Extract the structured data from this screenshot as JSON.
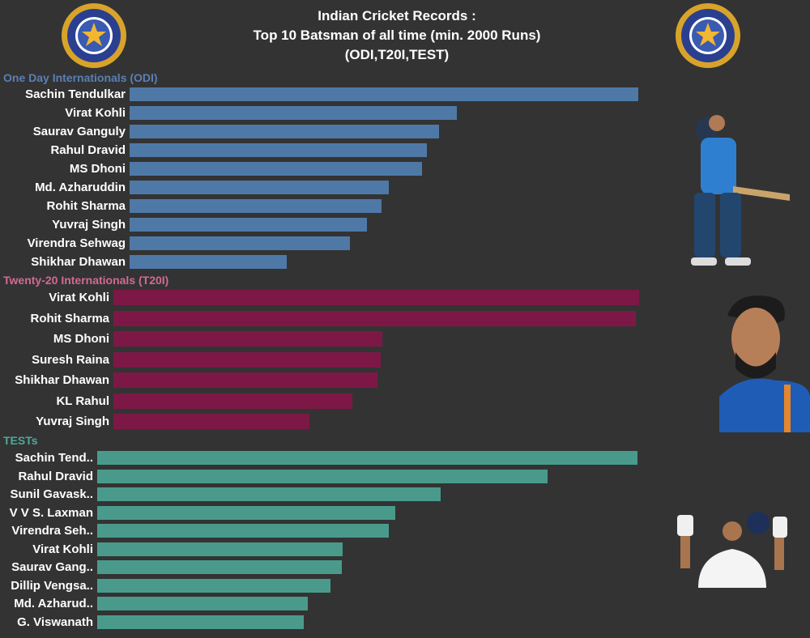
{
  "title": [
    "Indian Cricket Records :",
    "Top 10 Batsman of all time (min. 2000 Runs)",
    "(ODI,T20I,TEST)"
  ],
  "colors": {
    "odi": "#4e79a7",
    "t20": "#7d1846",
    "test": "#4a9a8c",
    "odi_title": "#5b7fb5",
    "t20_title": "#d06b93",
    "test_title": "#4fa89a"
  },
  "chart_data": [
    {
      "type": "bar",
      "orientation": "horizontal",
      "title": "One Day Internationals (ODI)",
      "categories": [
        "Sachin Tendulkar",
        "Virat Kohli",
        "Saurav Ganguly",
        "Rahul Dravid",
        "MS Dhoni",
        "Md. Azharuddin",
        "Rohit Sharma",
        "Yuvraj Singh",
        "Virendra Sehwag",
        "Shikhar Dhawan"
      ],
      "values": [
        18426,
        11867,
        11221,
        10768,
        10599,
        9378,
        9115,
        8609,
        7995,
        5688
      ]
    },
    {
      "type": "bar",
      "orientation": "horizontal",
      "title": "Twenty-20 Internationals (T20I)",
      "categories": [
        "Virat Kohli",
        "Rohit Sharma",
        "MS Dhoni",
        "Suresh Raina",
        "Shikhar Dhawan",
        "KL Rahul",
        "Yuvraj Singh"
      ],
      "values": [
        3159,
        3138,
        1617,
        1605,
        1588,
        1435,
        1177
      ]
    },
    {
      "type": "bar",
      "orientation": "horizontal",
      "title": "TESTs",
      "categories": [
        "Sachin Tend..",
        "Rahul Dravid",
        "Sunil Gavask..",
        "V V S. Laxman",
        "Virendra Seh..",
        "Virat Kohli",
        "Saurav Gang..",
        "Dillip Vengsa..",
        "Md. Azharud..",
        "G. Viswanath"
      ],
      "values": [
        15921,
        13265,
        10122,
        8781,
        8586,
        7240,
        7212,
        6868,
        6215,
        6080
      ]
    }
  ]
}
